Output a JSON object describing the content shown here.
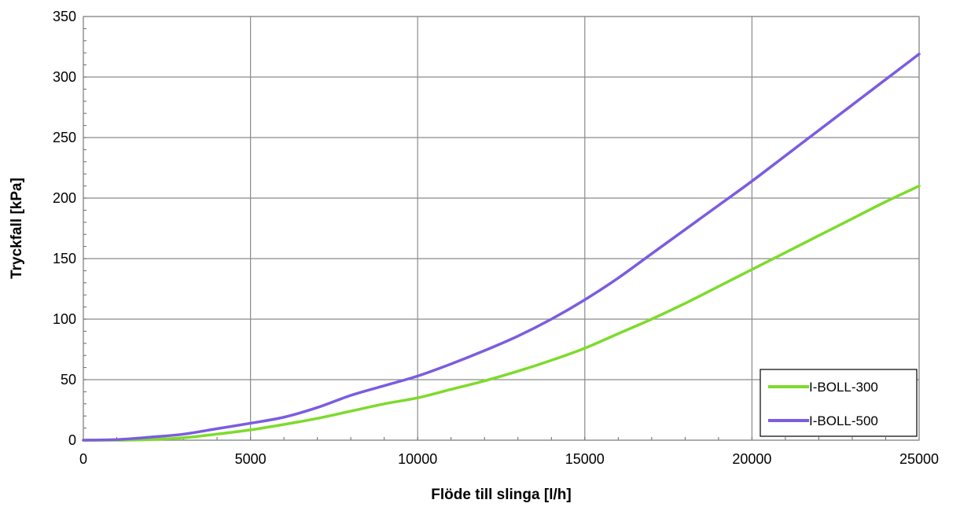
{
  "chart_data": {
    "type": "line",
    "xlabel": "Flöde till slinga [l/h]",
    "ylabel": "Tryckfall [kPa]",
    "xlim": [
      0,
      25000
    ],
    "ylim": [
      0,
      350
    ],
    "xticks": [
      "0",
      "5000",
      "10000",
      "15000",
      "20000",
      "25000"
    ],
    "yticks": [
      "0",
      "50",
      "100",
      "150",
      "200",
      "250",
      "300",
      "350"
    ],
    "grid": true,
    "legend_position": "bottom-right",
    "series": [
      {
        "name": "I-BOLL-300",
        "color": "#7ddb2c",
        "x": [
          0,
          1000,
          2000,
          3000,
          4000,
          5000,
          6000,
          7000,
          8000,
          9000,
          10000,
          11000,
          12000,
          13000,
          14000,
          15000,
          16000,
          17000,
          18000,
          19000,
          20000,
          21000,
          22000,
          23000,
          24000,
          25000
        ],
        "y": [
          0,
          0,
          0.5,
          2,
          5,
          8.5,
          13,
          18,
          24,
          30,
          35,
          42,
          49,
          57,
          66,
          76,
          88,
          100,
          113,
          127,
          141,
          155,
          169,
          183,
          197,
          210
        ]
      },
      {
        "name": "I-BOLL-500",
        "color": "#7b5ce0",
        "x": [
          0,
          1000,
          2000,
          3000,
          4000,
          5000,
          6000,
          7000,
          8000,
          9000,
          10000,
          11000,
          12000,
          13000,
          14000,
          15000,
          16000,
          17000,
          18000,
          19000,
          20000,
          21000,
          22000,
          23000,
          24000,
          25000
        ],
        "y": [
          0,
          0.5,
          2.5,
          5,
          9.5,
          14,
          19,
          27,
          37,
          45,
          53,
          63,
          74,
          86,
          100,
          116,
          134,
          154,
          174,
          194,
          214,
          235,
          256,
          277,
          298,
          319
        ]
      }
    ]
  }
}
